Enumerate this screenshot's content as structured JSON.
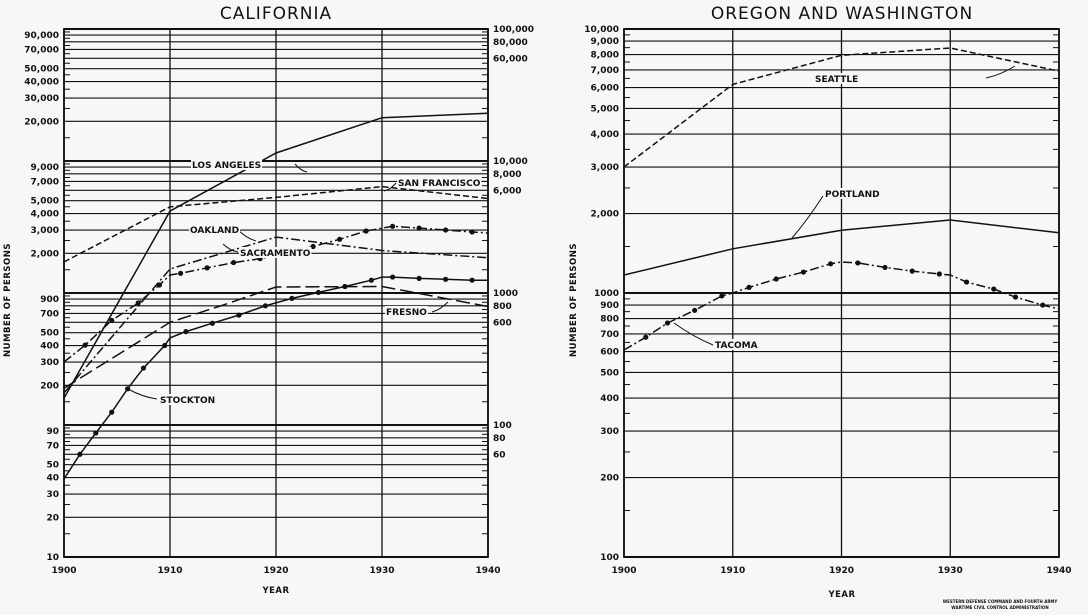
{
  "chart_data": [
    {
      "type": "line",
      "title": "CALIFORNIA",
      "xlabel": "YEAR",
      "ylabel": "NUMBER OF PERSONS",
      "xlim": [
        1900,
        1940
      ],
      "ylim": [
        10,
        100000
      ],
      "yscale": "log",
      "grid": true,
      "xticks": [
        "1900",
        "1910",
        "1920",
        "1930",
        "1940"
      ],
      "yticks": [
        "10",
        "20",
        "30",
        "40",
        "50",
        "60",
        "70",
        "80",
        "90",
        "100",
        "200",
        "300",
        "400",
        "500",
        "600",
        "700",
        "800",
        "900",
        "1000",
        "2,000",
        "3,000",
        "4,000",
        "5,000",
        "6,000",
        "7,000",
        "8,000",
        "9,000",
        "10,000",
        "20,000",
        "30,000",
        "40,000",
        "50,000",
        "60,000",
        "70,000",
        "80,000",
        "90,000",
        "100,000"
      ],
      "series": [
        {
          "name": "LOS ANGELES",
          "style": "solid",
          "markers": false,
          "x": [
            1900,
            1910,
            1920,
            1930,
            1940
          ],
          "y": [
            160,
            4170,
            11500,
            21300,
            23000
          ]
        },
        {
          "name": "SAN FRANCISCO",
          "style": "dashed",
          "markers": false,
          "x": [
            1900,
            1910,
            1920,
            1930,
            1940
          ],
          "y": [
            1720,
            4500,
            5300,
            6400,
            5200
          ]
        },
        {
          "name": "OAKLAND",
          "style": "dash-dot",
          "markers": false,
          "x": [
            1900,
            1910,
            1920,
            1930,
            1940
          ],
          "y": [
            175,
            1520,
            2650,
            2100,
            1850
          ]
        },
        {
          "name": "SACRAMENTO",
          "style": "dash-dot",
          "markers": true,
          "x": [
            1900,
            1902,
            1904.5,
            1907,
            1909,
            1910,
            1911,
            1913.5,
            1916,
            1918.5,
            1921,
            1923.5,
            1926,
            1928.5,
            1931,
            1933.5,
            1936,
            1938.5,
            1940
          ],
          "y": [
            300,
            403,
            620,
            840,
            1150,
            1370,
            1410,
            1550,
            1700,
            1820,
            2000,
            2250,
            2550,
            2950,
            3200,
            3100,
            3000,
            2900,
            2850
          ]
        },
        {
          "name": "FRESNO",
          "style": "long-dash",
          "markers": false,
          "x": [
            1900,
            1910,
            1915,
            1920,
            1930,
            1940
          ],
          "y": [
            190,
            600,
            810,
            1110,
            1120,
            790
          ]
        },
        {
          "name": "STOCKTON",
          "style": "solid",
          "markers": true,
          "x": [
            1900,
            1901.5,
            1903,
            1904.5,
            1906,
            1907.5,
            1909.5,
            1910,
            1911.5,
            1914,
            1916.5,
            1919,
            1921.5,
            1924,
            1926.5,
            1929,
            1930,
            1931,
            1933.5,
            1936,
            1938.5,
            1940
          ],
          "y": [
            39,
            60,
            87,
            125,
            188,
            270,
            400,
            457,
            510,
            590,
            680,
            800,
            910,
            1010,
            1120,
            1250,
            1320,
            1320,
            1290,
            1270,
            1250,
            1250
          ]
        }
      ]
    },
    {
      "type": "line",
      "title": "OREGON AND WASHINGTON",
      "xlabel": "YEAR",
      "ylabel": "NUMBER OF PERSONS",
      "xlim": [
        1900,
        1940
      ],
      "ylim": [
        100,
        10000
      ],
      "yscale": "log",
      "grid": true,
      "xticks": [
        "1900",
        "1910",
        "1920",
        "1930",
        "1940"
      ],
      "yticks": [
        "100",
        "200",
        "300",
        "400",
        "500",
        "600",
        "700",
        "800",
        "900",
        "1000",
        "2,000",
        "3,000",
        "4,000",
        "5,000",
        "6,000",
        "7,000",
        "8,000",
        "9,000",
        "10,000"
      ],
      "series": [
        {
          "name": "SEATTLE",
          "style": "dashed",
          "markers": false,
          "x": [
            1900,
            1910,
            1920,
            1930,
            1940
          ],
          "y": [
            3000,
            6170,
            7950,
            8470,
            6920
          ]
        },
        {
          "name": "PORTLAND",
          "style": "solid",
          "markers": false,
          "x": [
            1900,
            1910,
            1920,
            1930,
            1940
          ],
          "y": [
            1170,
            1470,
            1730,
            1890,
            1690
          ]
        },
        {
          "name": "TACOMA",
          "style": "dash-dot",
          "markers": true,
          "x": [
            1900,
            1902,
            1904,
            1906.5,
            1909,
            1910,
            1911.5,
            1914,
            1916.5,
            1919,
            1920,
            1921.5,
            1924,
            1926.5,
            1929,
            1930,
            1931.5,
            1934,
            1936,
            1938.5,
            1940
          ],
          "y": [
            608,
            680,
            770,
            860,
            975,
            1000,
            1050,
            1130,
            1200,
            1290,
            1310,
            1300,
            1250,
            1210,
            1180,
            1170,
            1100,
            1035,
            965,
            900,
            870
          ]
        }
      ]
    }
  ],
  "credit": {
    "line1": "WESTERN DEFENSE COMMAND AND FOURTH ARMY",
    "line2": "WARTIME CIVIL CONTROL ADMINISTRATION"
  }
}
